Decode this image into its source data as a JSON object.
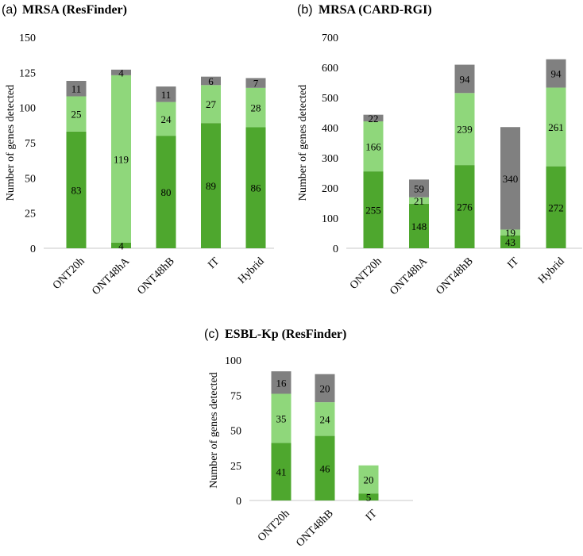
{
  "colors": {
    "dark_green": "#4ea72e",
    "light_green": "#8fd77b",
    "gray": "#808080",
    "axis": "#c8c8c8"
  },
  "chart_data": [
    {
      "type": "bar",
      "stacked": true,
      "panel_letter": "(a)",
      "title": "MRSA (ResFinder)",
      "ylabel": "Number of genes detected",
      "ylim": [
        0,
        150
      ],
      "yticks": [
        0,
        25,
        50,
        75,
        100,
        125,
        150
      ],
      "categories": [
        "ONT20h",
        "ONT48hA",
        "ONT48hB",
        "IT",
        "Hybrid"
      ],
      "series": [
        {
          "name": "dark",
          "color": "#4ea72e",
          "values": [
            83,
            4,
            80,
            89,
            86
          ]
        },
        {
          "name": "light",
          "color": "#8fd77b",
          "values": [
            25,
            119,
            24,
            27,
            28
          ]
        },
        {
          "name": "gray",
          "color": "#808080",
          "values": [
            11,
            4,
            11,
            6,
            7
          ]
        }
      ]
    },
    {
      "type": "bar",
      "stacked": true,
      "panel_letter": "(b)",
      "title": "MRSA (CARD-RGI)",
      "ylabel": "Number of genes detected",
      "ylim": [
        0,
        700
      ],
      "yticks": [
        0,
        100,
        200,
        300,
        400,
        500,
        600,
        700
      ],
      "categories": [
        "ONT20h",
        "ONT48hA",
        "ONT48hB",
        "IT",
        "Hybrid"
      ],
      "series": [
        {
          "name": "dark",
          "color": "#4ea72e",
          "values": [
            255,
            148,
            276,
            43,
            272
          ]
        },
        {
          "name": "light",
          "color": "#8fd77b",
          "values": [
            166,
            21,
            239,
            19,
            261
          ]
        },
        {
          "name": "gray",
          "color": "#808080",
          "values": [
            22,
            59,
            94,
            340,
            94
          ]
        }
      ]
    },
    {
      "type": "bar",
      "stacked": true,
      "panel_letter": "(c)",
      "title": "ESBL-Kp (ResFinder)",
      "ylabel": "Number of genes detected",
      "ylim": [
        0,
        100
      ],
      "yticks": [
        0,
        25,
        50,
        75,
        100
      ],
      "categories": [
        "ONT20h",
        "ONT48hB",
        "IT"
      ],
      "series": [
        {
          "name": "dark",
          "color": "#4ea72e",
          "values": [
            41,
            46,
            5
          ]
        },
        {
          "name": "light",
          "color": "#8fd77b",
          "values": [
            35,
            24,
            20
          ]
        },
        {
          "name": "gray",
          "color": "#808080",
          "values": [
            16,
            20,
            null
          ]
        }
      ]
    }
  ]
}
